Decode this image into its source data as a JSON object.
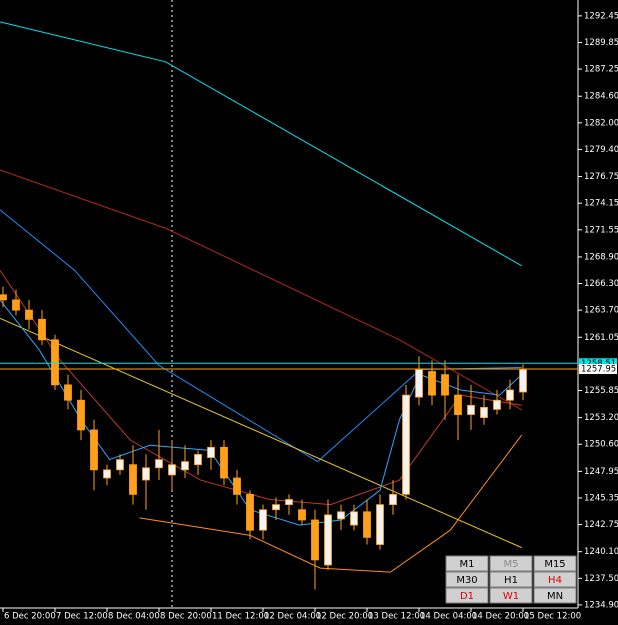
{
  "chart_data": {
    "type": "candlestick",
    "bull_color": "#f2f2f2",
    "bear_color": "#ff9f1a",
    "wick_color": "#ff9f1a",
    "axis_color": "#ffffff",
    "ylim": [
      1234.6,
      1294.0
    ],
    "yticks": [
      1292.45,
      1289.85,
      1287.25,
      {
        "value": 1284.6,
        "label": "1284.60"
      },
      {
        "value": 1282,
        "label": "1282.00"
      },
      {
        "value": 1279.4,
        "label": "1279.40"
      },
      1276.75,
      1274.15,
      1271.55,
      {
        "value": 1268.9,
        "label": "1268.90"
      },
      {
        "value": 1266.3,
        "label": "1266.30"
      },
      {
        "value": 1263.7,
        "label": "1263.70"
      },
      1261.05,
      1255.85,
      {
        "value": 1253.2,
        "label": "1253.20"
      },
      {
        "value": 1250.6,
        "label": "1250.60"
      },
      1247.95,
      1245.35,
      1242.75,
      {
        "value": 1240.1,
        "label": "1240.10"
      },
      {
        "value": 1237.5,
        "label": "1237.50"
      },
      {
        "value": 1234.9,
        "label": "1234.90"
      }
    ],
    "xlim": [
      -0.23,
      44.23
    ],
    "xticks": [
      {
        "value": 0,
        "label": "6 Dec 20:00"
      },
      {
        "value": 4,
        "label": "7 Dec 12:00"
      },
      {
        "value": 8,
        "label": "8 Dec 04:00"
      },
      {
        "value": 12,
        "label": "8 Dec 20:00"
      },
      {
        "value": 16,
        "label": "11 Dec 12:00"
      },
      {
        "value": 20,
        "label": "12 Dec 04:00"
      },
      {
        "value": 24,
        "label": "12 Dec 20:00"
      },
      {
        "value": 28,
        "label": "13 Dec 12:00"
      },
      {
        "value": 32,
        "label": "14 Dec 04:00"
      },
      {
        "value": 36,
        "label": "14 Dec 20:00"
      },
      {
        "value": 40,
        "label": "15 Dec 12:00"
      }
    ],
    "open": [
      1265.2,
      1264.7,
      1263.7,
      1262.8,
      1260.8,
      1256.4,
      1254.9,
      1252.0,
      1247.3,
      1248.1,
      1248.6,
      1247.1,
      1248.3,
      1247.6,
      1248.1,
      1248.6,
      1249.3,
      1250.3,
      1247.3,
      1245.7,
      1242.2,
      1244.2,
      1244.7,
      1244.2,
      1243.2,
      1238.8,
      1243.3,
      1242.7,
      1244.0,
      1240.8,
      1244.7,
      1245.7,
      1255.2,
      1257.7,
      1257.4,
      1255.4,
      1253.5,
      1253.2,
      1254.0,
      1254.9,
      1255.7
    ],
    "high": [
      1266.0,
      1265.7,
      1264.7,
      1263.7,
      1261.3,
      1257.4,
      1255.9,
      1253.0,
      1248.6,
      1249.6,
      1250.5,
      1249.6,
      1252.0,
      1251.0,
      1250.5,
      1250.0,
      1251.0,
      1251.0,
      1248.1,
      1246.1,
      1244.7,
      1245.4,
      1245.7,
      1245.2,
      1244.2,
      1245.2,
      1244.7,
      1244.7,
      1245.2,
      1245.7,
      1247.1,
      1256.4,
      1259.2,
      1258.8,
      1258.8,
      1257.4,
      1256.4,
      1255.4,
      1255.9,
      1256.9,
      1258.4
    ],
    "low": [
      1264.0,
      1263.2,
      1261.8,
      1260.3,
      1255.9,
      1254.0,
      1251.0,
      1246.1,
      1246.6,
      1247.6,
      1244.7,
      1244.2,
      1247.1,
      1246.1,
      1247.3,
      1247.6,
      1248.1,
      1246.6,
      1244.7,
      1241.3,
      1241.3,
      1243.2,
      1243.7,
      1242.7,
      1236.4,
      1238.3,
      1242.2,
      1242.2,
      1240.8,
      1240.3,
      1243.7,
      1245.2,
      1254.4,
      1254.4,
      1253.0,
      1251.0,
      1252.0,
      1252.5,
      1253.5,
      1254.0,
      1254.9
    ],
    "close": [
      1264.7,
      1263.7,
      1262.8,
      1260.8,
      1256.4,
      1254.9,
      1252.0,
      1248.1,
      1248.1,
      1249.1,
      1245.7,
      1248.3,
      1249.1,
      1248.6,
      1248.9,
      1249.6,
      1250.3,
      1247.3,
      1245.7,
      1242.2,
      1244.2,
      1244.7,
      1245.2,
      1243.2,
      1239.3,
      1243.7,
      1244.0,
      1244.0,
      1241.5,
      1244.7,
      1245.7,
      1255.4,
      1257.9,
      1255.4,
      1255.4,
      1253.5,
      1254.4,
      1254.2,
      1254.9,
      1255.9,
      1257.9
    ],
    "series": [
      {
        "color": "#00e5ee",
        "x": [
          -0.23,
          12.5,
          39.9
        ],
        "values": [
          1291.86,
          1287.96,
          1268.03
        ]
      },
      {
        "color": "#b3261e",
        "x": [
          -0.23,
          12.5,
          30.5,
          39.9
        ],
        "values": [
          1277.4,
          1271.7,
          1260.8,
          1253.96
        ]
      },
      {
        "color": "#1e90ff",
        "x": [
          -0.23,
          5.5,
          12,
          24.2,
          32.1,
          39.9
        ],
        "values": [
          1273.5,
          1267.6,
          1258.3,
          1248.9,
          1257.9,
          1258.1
        ]
      },
      {
        "color": "#e6c619",
        "x": [
          -0.23,
          39.9
        ],
        "values": [
          1262.9,
          1240.5
        ]
      },
      {
        "color": "#ff8c1a",
        "x": [
          10.5,
          19,
          24.4,
          29.8,
          34.4,
          39.9
        ],
        "values": [
          1243.4,
          1241.7,
          1238.5,
          1238.1,
          1242.2,
          1251.5
        ]
      },
      {
        "color": "#c0392b",
        "x": [
          -0.23,
          4.4,
          9.8,
          15.2,
          20.5,
          25.2,
          30.5,
          35.2,
          39.9
        ],
        "values": [
          1267.6,
          1258.8,
          1251.0,
          1247.1,
          1245.2,
          1244.7,
          1247.1,
          1255.4,
          1254.4
        ]
      },
      {
        "color": "#2aa8ff",
        "x": [
          -0.23,
          2.8,
          6,
          8.2,
          11.3,
          15.9,
          19,
          22.8,
          26,
          29,
          30.5,
          32.1,
          35.2,
          38.2,
          39.9
        ],
        "values": [
          1264.7,
          1259.8,
          1253.0,
          1249.1,
          1250.5,
          1250.0,
          1244.2,
          1242.7,
          1243.2,
          1246.1,
          1253.0,
          1257.4,
          1255.9,
          1255.4,
          1257.4
        ]
      }
    ],
    "price_lines": [
      {
        "value": 1258.51,
        "color": "#00e5ee"
      },
      {
        "value": 1257.95,
        "color": "#ff9f1a"
      }
    ],
    "timeframes": [
      {
        "label": "M1",
        "color": "#000000"
      },
      {
        "label": "M5",
        "color": "#8c8c8c"
      },
      {
        "label": "M15",
        "color": "#000000"
      },
      {
        "label": "M30",
        "color": "#000000"
      },
      {
        "label": "H1",
        "color": "#000000"
      },
      {
        "label": "H4",
        "color": "#e00000"
      },
      {
        "label": "D1",
        "color": "#e00000"
      },
      {
        "label": "W1",
        "color": "#e00000"
      },
      {
        "label": "MN",
        "color": "#000000"
      }
    ]
  }
}
